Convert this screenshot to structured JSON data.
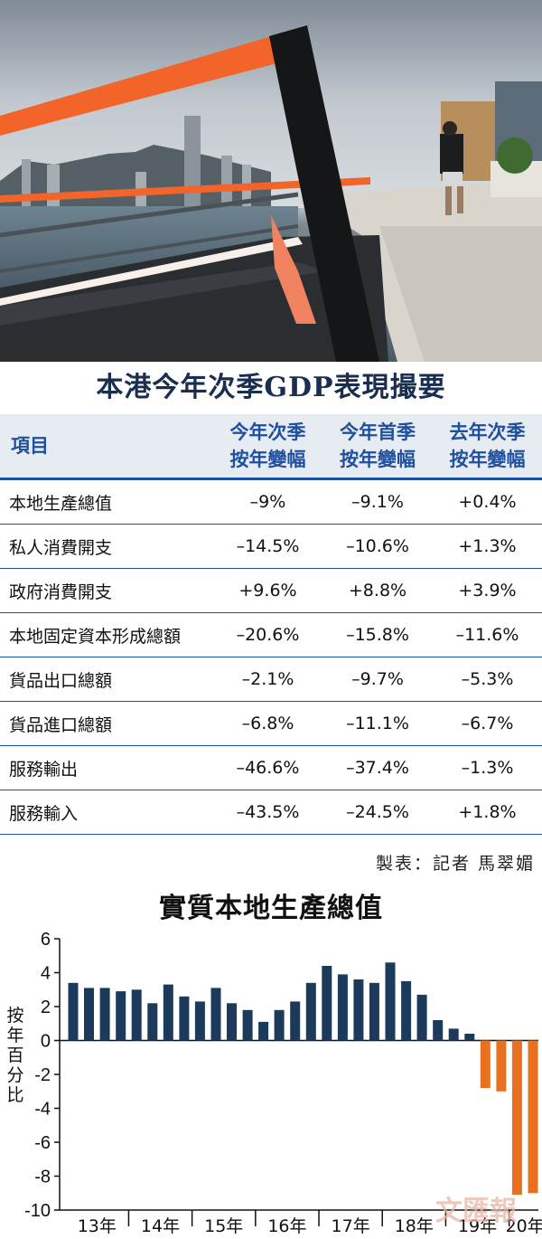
{
  "table": {
    "title": "本港今年次季GDP表現撮要",
    "headers": {
      "item": "項目",
      "col1_line1": "今年次季",
      "col1_line2": "按年變幅",
      "col2_line1": "今年首季",
      "col2_line2": "按年變幅",
      "col3_line1": "去年次季",
      "col3_line2": "按年變幅"
    },
    "rows": [
      {
        "label": "本地生產總值",
        "q2_2020": "–9%",
        "q1_2020": "–9.1%",
        "q2_2019": "+0.4%"
      },
      {
        "label": "私人消費開支",
        "q2_2020": "–14.5%",
        "q1_2020": "–10.6%",
        "q2_2019": "+1.3%"
      },
      {
        "label": "政府消費開支",
        "q2_2020": "+9.6%",
        "q1_2020": "+8.8%",
        "q2_2019": "+3.9%"
      },
      {
        "label": "本地固定資本形成總額",
        "q2_2020": "–20.6%",
        "q1_2020": "–15.8%",
        "q2_2019": "–11.6%"
      },
      {
        "label": "貨品出口總額",
        "q2_2020": "–2.1%",
        "q1_2020": "–9.7%",
        "q2_2019": "–5.3%"
      },
      {
        "label": "貨品進口總額",
        "q2_2020": "–6.8%",
        "q1_2020": "–11.1%",
        "q2_2019": "–6.7%"
      },
      {
        "label": "服務輸出",
        "q2_2020": "–46.6%",
        "q1_2020": "–37.4%",
        "q2_2019": "–1.3%"
      },
      {
        "label": "服務輸入",
        "q2_2020": "–43.5%",
        "q1_2020": "–24.5%",
        "q2_2019": "+1.8%"
      }
    ],
    "credit": "製表：記者 馬翠媚"
  },
  "watermark": "文匯報",
  "colors": {
    "title_navy": "#1a2e50",
    "header_blue": "#1f4f9f",
    "header_bg": "#e7ecf2",
    "bar_positive": "#1b3a5c",
    "bar_negative": "#e8701e"
  },
  "chart_data": {
    "type": "bar",
    "title": "實質本地生產總值",
    "ylabel": "按年百分比",
    "ylim": [
      -10,
      6
    ],
    "yticks": [
      6,
      4,
      2,
      0,
      -2,
      -4,
      -6,
      -8,
      -10
    ],
    "year_labels": [
      "13年",
      "14年",
      "15年",
      "16年",
      "17年",
      "18年",
      "19年",
      "20年"
    ],
    "categories": [
      "13年Q1",
      "13年Q2",
      "13年Q3",
      "13年Q4",
      "14年Q1",
      "14年Q2",
      "14年Q3",
      "14年Q4",
      "15年Q1",
      "15年Q2",
      "15年Q3",
      "15年Q4",
      "16年Q1",
      "16年Q2",
      "16年Q3",
      "16年Q4",
      "17年Q1",
      "17年Q2",
      "17年Q3",
      "17年Q4",
      "18年Q1",
      "18年Q2",
      "18年Q3",
      "18年Q4",
      "19年Q1",
      "19年Q2",
      "19年Q3",
      "19年Q4",
      "20年Q1",
      "20年Q2"
    ],
    "values": [
      3.4,
      3.1,
      3.1,
      2.9,
      3.0,
      2.2,
      3.3,
      2.6,
      2.3,
      3.1,
      2.2,
      1.8,
      1.1,
      1.8,
      2.3,
      3.4,
      4.4,
      3.9,
      3.6,
      3.4,
      4.6,
      3.5,
      2.7,
      1.2,
      0.7,
      0.4,
      -2.8,
      -3.0,
      -9.1,
      -9.0
    ],
    "grid": false,
    "legend": "none"
  }
}
